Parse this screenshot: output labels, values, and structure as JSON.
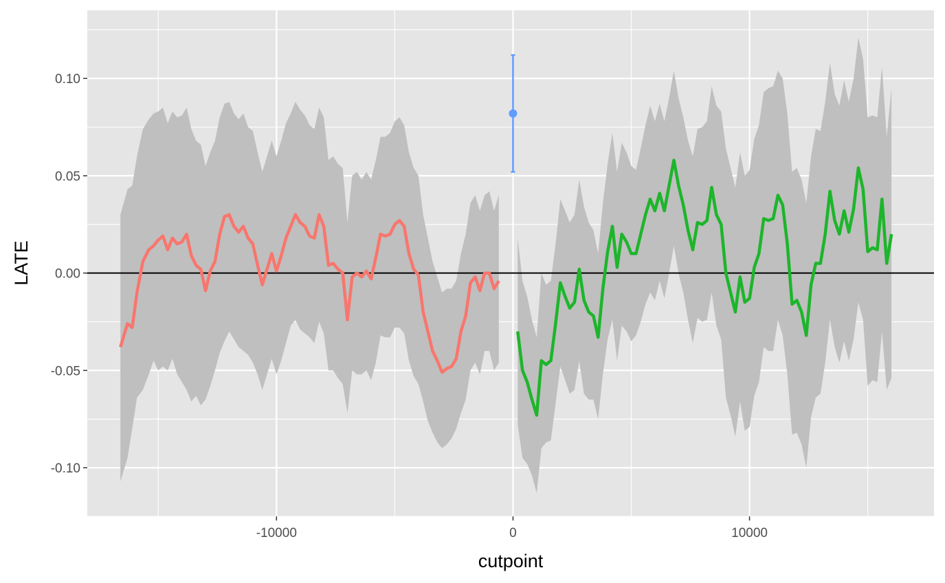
{
  "chart_data": {
    "type": "line",
    "title": "",
    "xlabel": "cutpoint",
    "ylabel": "LATE",
    "xlim": [
      -18000,
      17800
    ],
    "ylim": [
      -0.125,
      0.135
    ],
    "x_ticks": [
      -10000,
      0,
      10000
    ],
    "x_tick_labels": [
      "-10000",
      "0",
      "10000"
    ],
    "y_ticks": [
      -0.1,
      -0.05,
      0.0,
      0.05,
      0.1
    ],
    "y_tick_labels": [
      "-0.10",
      "-0.05",
      "0.00",
      "0.05",
      "0.10"
    ],
    "grid": true,
    "legend": "none",
    "reference_line_y": 0,
    "colors": {
      "panel": "#e5e5e5",
      "grid": "#ffffff",
      "ribbon": "#bfbfbf",
      "left": "#f8766d",
      "right": "#1db52b",
      "point": "#619cff",
      "reference": "#000000"
    },
    "series": [
      {
        "side": "left",
        "x": [
          -16600,
          -16300,
          -16100,
          -15900,
          -15650,
          -15400,
          -15200,
          -15000,
          -14800,
          -14600,
          -14400,
          -14200,
          -14000,
          -13800,
          -13600,
          -13400,
          -13200,
          -13000,
          -12800,
          -12600,
          -12400,
          -12200,
          -12000,
          -11800,
          -11600,
          -11400,
          -11200,
          -11000,
          -10800,
          -10600,
          -10400,
          -10200,
          -10000,
          -9800,
          -9600,
          -9400,
          -9200,
          -9000,
          -8800,
          -8600,
          -8400,
          -8200,
          -8000,
          -7800,
          -7600,
          -7400,
          -7200,
          -7000,
          -6800,
          -6600,
          -6400,
          -6200,
          -6000,
          -5800,
          -5600,
          -5400,
          -5200,
          -5000,
          -4800,
          -4600,
          -4400,
          -4200,
          -4000,
          -3800,
          -3600,
          -3400,
          -3200,
          -3000,
          -2800,
          -2600,
          -2400,
          -2200,
          -2000,
          -1800,
          -1600,
          -1400,
          -1200,
          -1000,
          -800,
          -600
        ],
        "y": [
          -0.038,
          -0.026,
          -0.028,
          -0.01,
          0.006,
          0.012,
          0.014,
          0.017,
          0.019,
          0.012,
          0.018,
          0.015,
          0.016,
          0.02,
          0.009,
          0.004,
          0.002,
          -0.009,
          0.001,
          0.006,
          0.02,
          0.029,
          0.03,
          0.024,
          0.021,
          0.024,
          0.018,
          0.015,
          0.004,
          -0.006,
          0.002,
          0.01,
          0.001,
          0.009,
          0.018,
          0.024,
          0.03,
          0.026,
          0.024,
          0.019,
          0.018,
          0.03,
          0.024,
          0.004,
          0.005,
          0.002,
          0.0,
          -0.024,
          -0.002,
          0.0,
          -0.002,
          0.001,
          -0.003,
          0.008,
          0.02,
          0.019,
          0.02,
          0.025,
          0.027,
          0.024,
          0.01,
          0.002,
          -0.001,
          -0.02,
          -0.03,
          -0.04,
          -0.045,
          -0.051,
          -0.049,
          -0.048,
          -0.044,
          -0.03,
          -0.022,
          -0.005,
          -0.002,
          -0.009,
          0.0,
          0.0,
          -0.008,
          -0.004
        ],
        "ci_lower": [
          -0.107,
          -0.095,
          -0.08,
          -0.064,
          -0.06,
          -0.052,
          -0.045,
          -0.05,
          -0.048,
          -0.05,
          -0.044,
          -0.052,
          -0.056,
          -0.06,
          -0.066,
          -0.063,
          -0.068,
          -0.065,
          -0.058,
          -0.05,
          -0.041,
          -0.035,
          -0.03,
          -0.034,
          -0.038,
          -0.04,
          -0.042,
          -0.046,
          -0.052,
          -0.06,
          -0.052,
          -0.044,
          -0.052,
          -0.045,
          -0.036,
          -0.027,
          -0.024,
          -0.029,
          -0.031,
          -0.033,
          -0.036,
          -0.025,
          -0.031,
          -0.05,
          -0.05,
          -0.054,
          -0.057,
          -0.072,
          -0.05,
          -0.052,
          -0.052,
          -0.05,
          -0.055,
          -0.046,
          -0.032,
          -0.033,
          -0.033,
          -0.028,
          -0.028,
          -0.031,
          -0.045,
          -0.053,
          -0.057,
          -0.066,
          -0.076,
          -0.082,
          -0.087,
          -0.09,
          -0.088,
          -0.085,
          -0.08,
          -0.072,
          -0.065,
          -0.05,
          -0.046,
          -0.052,
          -0.04,
          -0.04,
          -0.05,
          -0.046
        ],
        "ci_upper": [
          0.03,
          0.043,
          0.045,
          0.06,
          0.074,
          0.079,
          0.082,
          0.083,
          0.085,
          0.077,
          0.083,
          0.08,
          0.081,
          0.085,
          0.074,
          0.068,
          0.066,
          0.055,
          0.062,
          0.068,
          0.08,
          0.087,
          0.088,
          0.082,
          0.079,
          0.082,
          0.075,
          0.073,
          0.062,
          0.052,
          0.06,
          0.068,
          0.06,
          0.068,
          0.077,
          0.082,
          0.088,
          0.084,
          0.081,
          0.076,
          0.074,
          0.085,
          0.08,
          0.058,
          0.06,
          0.056,
          0.054,
          0.026,
          0.05,
          0.052,
          0.048,
          0.052,
          0.048,
          0.058,
          0.07,
          0.07,
          0.072,
          0.078,
          0.08,
          0.076,
          0.062,
          0.054,
          0.05,
          0.03,
          0.018,
          0.006,
          -0.002,
          -0.01,
          -0.008,
          -0.008,
          -0.004,
          0.01,
          0.02,
          0.036,
          0.04,
          0.032,
          0.04,
          0.042,
          0.032,
          0.04
        ]
      },
      {
        "side": "right",
        "x": [
          200,
          400,
          600,
          800,
          1000,
          1200,
          1400,
          1600,
          1800,
          2000,
          2200,
          2400,
          2600,
          2800,
          3000,
          3200,
          3400,
          3600,
          3800,
          4000,
          4200,
          4400,
          4600,
          4800,
          5000,
          5200,
          5400,
          5600,
          5800,
          6000,
          6200,
          6400,
          6600,
          6800,
          7000,
          7200,
          7400,
          7600,
          7800,
          8000,
          8200,
          8400,
          8600,
          8800,
          9000,
          9200,
          9400,
          9600,
          9800,
          10000,
          10200,
          10400,
          10600,
          10800,
          11000,
          11200,
          11400,
          11600,
          11800,
          12000,
          12200,
          12400,
          12600,
          12800,
          13000,
          13200,
          13400,
          13600,
          13800,
          14000,
          14200,
          14400,
          14600,
          14800,
          15000,
          15200,
          15400,
          15600,
          15800,
          16000
        ],
        "y": [
          -0.03,
          -0.05,
          -0.056,
          -0.065,
          -0.073,
          -0.045,
          -0.047,
          -0.045,
          -0.026,
          -0.005,
          -0.012,
          -0.018,
          -0.015,
          0.002,
          -0.014,
          -0.02,
          -0.022,
          -0.033,
          -0.008,
          0.011,
          0.024,
          0.003,
          0.02,
          0.016,
          0.01,
          0.01,
          0.02,
          0.03,
          0.038,
          0.032,
          0.041,
          0.032,
          0.045,
          0.058,
          0.045,
          0.035,
          0.022,
          0.012,
          0.026,
          0.025,
          0.027,
          0.044,
          0.03,
          0.025,
          0.0,
          -0.01,
          -0.02,
          -0.002,
          -0.015,
          -0.013,
          0.003,
          0.01,
          0.028,
          0.027,
          0.028,
          0.04,
          0.035,
          0.015,
          -0.016,
          -0.014,
          -0.02,
          -0.032,
          -0.006,
          0.005,
          0.005,
          0.02,
          0.042,
          0.027,
          0.02,
          0.032,
          0.021,
          0.033,
          0.054,
          0.043,
          0.011,
          0.013,
          0.012,
          0.038,
          0.005,
          0.02
        ],
        "ci_lower": [
          -0.078,
          -0.095,
          -0.098,
          -0.104,
          -0.113,
          -0.09,
          -0.087,
          -0.086,
          -0.067,
          -0.048,
          -0.055,
          -0.062,
          -0.06,
          -0.045,
          -0.062,
          -0.065,
          -0.065,
          -0.075,
          -0.052,
          -0.034,
          -0.024,
          -0.045,
          -0.027,
          -0.03,
          -0.035,
          -0.032,
          -0.025,
          -0.016,
          -0.01,
          -0.014,
          -0.004,
          -0.013,
          0.0,
          0.014,
          0.0,
          -0.01,
          -0.024,
          -0.036,
          -0.023,
          -0.025,
          -0.024,
          -0.01,
          -0.027,
          -0.034,
          -0.064,
          -0.073,
          -0.084,
          -0.066,
          -0.081,
          -0.079,
          -0.063,
          -0.056,
          -0.038,
          -0.04,
          -0.04,
          -0.024,
          -0.032,
          -0.052,
          -0.083,
          -0.082,
          -0.088,
          -0.1,
          -0.074,
          -0.064,
          -0.062,
          -0.046,
          -0.024,
          -0.038,
          -0.046,
          -0.035,
          -0.045,
          -0.034,
          -0.015,
          -0.024,
          -0.058,
          -0.055,
          -0.056,
          -0.03,
          -0.06,
          -0.054
        ],
        "ci_upper": [
          0.018,
          -0.004,
          -0.012,
          -0.024,
          -0.033,
          0.0,
          -0.006,
          -0.004,
          0.015,
          0.038,
          0.032,
          0.026,
          0.03,
          0.048,
          0.034,
          0.026,
          0.022,
          0.01,
          0.036,
          0.056,
          0.072,
          0.052,
          0.067,
          0.062,
          0.055,
          0.053,
          0.064,
          0.076,
          0.086,
          0.078,
          0.087,
          0.078,
          0.09,
          0.104,
          0.09,
          0.08,
          0.068,
          0.06,
          0.074,
          0.075,
          0.078,
          0.096,
          0.086,
          0.083,
          0.064,
          0.054,
          0.044,
          0.062,
          0.05,
          0.053,
          0.069,
          0.076,
          0.093,
          0.095,
          0.096,
          0.104,
          0.1,
          0.082,
          0.052,
          0.054,
          0.048,
          0.036,
          0.06,
          0.074,
          0.073,
          0.088,
          0.108,
          0.092,
          0.086,
          0.099,
          0.088,
          0.1,
          0.121,
          0.11,
          0.08,
          0.081,
          0.08,
          0.106,
          0.07,
          0.095
        ]
      }
    ],
    "point_estimate": {
      "x": 0,
      "y": 0.082,
      "ci_lower": 0.052,
      "ci_upper": 0.112
    }
  }
}
